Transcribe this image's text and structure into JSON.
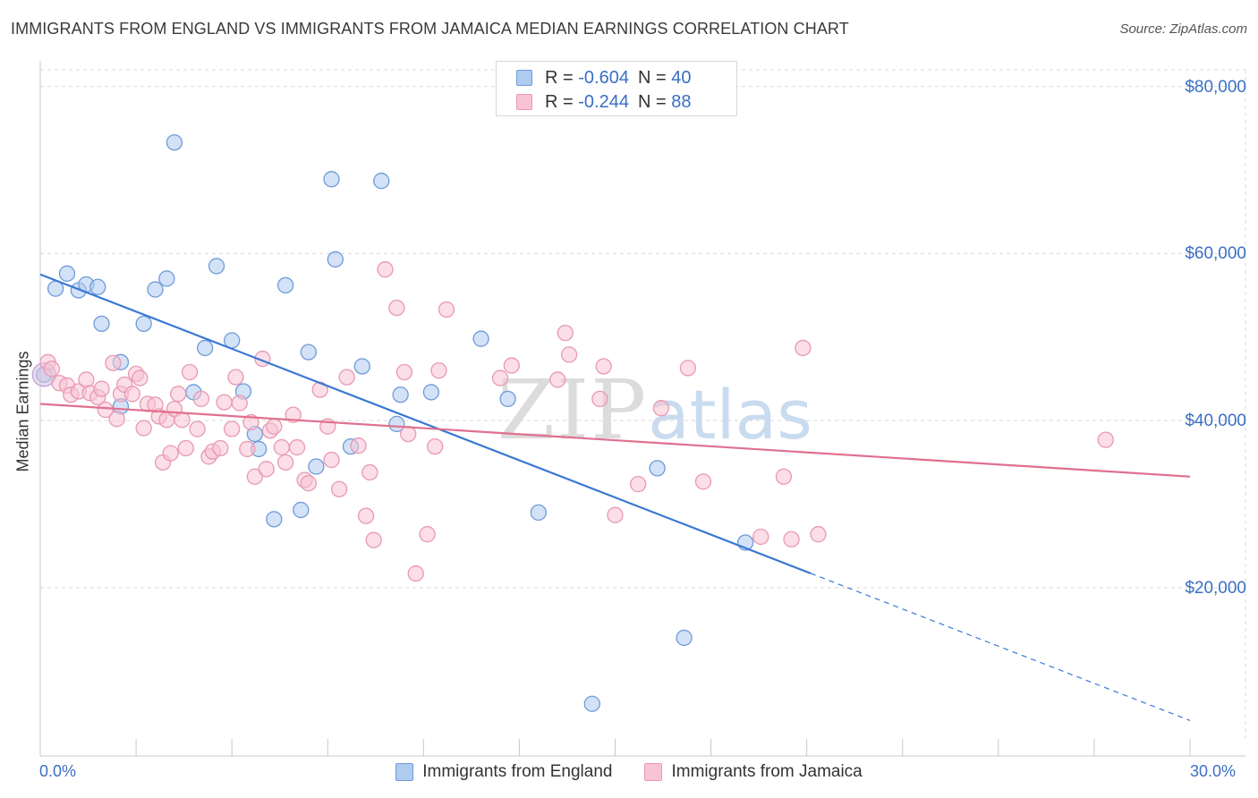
{
  "title": "IMMIGRANTS FROM ENGLAND VS IMMIGRANTS FROM JAMAICA MEDIAN EARNINGS CORRELATION CHART",
  "source": "Source: ZipAtlas.com",
  "watermark": {
    "zip": "ZIP",
    "atlas": "atlas"
  },
  "legend_top": [
    {
      "r_label": "R = ",
      "r_value": "-0.604",
      "n_label": "N = ",
      "n_value": "40"
    },
    {
      "r_label": "R = ",
      "r_value": "-0.244",
      "n_label": "N = ",
      "n_value": "88"
    }
  ],
  "colors": {
    "england_fill": "#aecbf0",
    "england_stroke": "#6f9bd8",
    "england_line": "#3a78d4",
    "jamaica_fill": "#f8c3d3",
    "jamaica_stroke": "#e899b3",
    "jamaica_line": "#e0708f",
    "axis_text": "#3a6fc4",
    "grid": "#d9d9d9"
  },
  "chart_data": {
    "type": "scatter",
    "title": "IMMIGRANTS FROM ENGLAND VS IMMIGRANTS FROM JAMAICA MEDIAN EARNINGS CORRELATION CHART",
    "xlabel": "",
    "ylabel": "Median Earnings",
    "xlim": [
      0,
      30
    ],
    "ylim": [
      2000,
      82000
    ],
    "x_tick_labels": [
      "0.0%",
      "30.0%"
    ],
    "y_ticks": [
      {
        "value": 20000,
        "label": "$20,000"
      },
      {
        "value": 40000,
        "label": "$40,000"
      },
      {
        "value": 60000,
        "label": "$60,000"
      },
      {
        "value": 80000,
        "label": "$80,000"
      }
    ],
    "grid": true,
    "legend_position": "bottom",
    "series": [
      {
        "name": "Immigrants from England",
        "r": -0.604,
        "n": 40,
        "trend": {
          "x0": 0,
          "y0": 57500,
          "x1": 30,
          "y1": 4100,
          "solid_until_x": 20.1
        },
        "points": [
          [
            0.1,
            45500
          ],
          [
            0.4,
            55800
          ],
          [
            0.7,
            57600
          ],
          [
            1.0,
            55600
          ],
          [
            1.2,
            56300
          ],
          [
            1.5,
            56000
          ],
          [
            1.6,
            51600
          ],
          [
            2.1,
            47000
          ],
          [
            2.1,
            41700
          ],
          [
            2.7,
            51600
          ],
          [
            3.0,
            55700
          ],
          [
            3.3,
            57000
          ],
          [
            3.5,
            73300
          ],
          [
            4.0,
            43400
          ],
          [
            4.3,
            48700
          ],
          [
            4.6,
            58500
          ],
          [
            5.0,
            49600
          ],
          [
            5.3,
            43500
          ],
          [
            5.6,
            38400
          ],
          [
            5.7,
            36600
          ],
          [
            6.1,
            28200
          ],
          [
            6.4,
            56200
          ],
          [
            6.8,
            29300
          ],
          [
            7.0,
            48200
          ],
          [
            7.2,
            34500
          ],
          [
            7.6,
            68900
          ],
          [
            7.7,
            59300
          ],
          [
            8.1,
            36900
          ],
          [
            8.4,
            46500
          ],
          [
            8.9,
            68700
          ],
          [
            9.3,
            39600
          ],
          [
            9.4,
            43100
          ],
          [
            10.2,
            43400
          ],
          [
            11.5,
            49800
          ],
          [
            12.2,
            42600
          ],
          [
            13.0,
            29000
          ],
          [
            16.1,
            34300
          ],
          [
            16.8,
            14000
          ],
          [
            18.4,
            25400
          ],
          [
            14.4,
            6100
          ]
        ]
      },
      {
        "name": "Immigrants from Jamaica",
        "r": -0.244,
        "n": 88,
        "trend": {
          "x0": 0,
          "y0": 42000,
          "x1": 30,
          "y1": 33300
        },
        "points": [
          [
            0.2,
            47000
          ],
          [
            0.3,
            46200
          ],
          [
            0.5,
            44500
          ],
          [
            0.7,
            44200
          ],
          [
            0.8,
            43100
          ],
          [
            1.0,
            43500
          ],
          [
            1.2,
            44900
          ],
          [
            1.3,
            43300
          ],
          [
            1.5,
            42800
          ],
          [
            1.6,
            43800
          ],
          [
            1.7,
            41300
          ],
          [
            1.9,
            46900
          ],
          [
            2.0,
            40200
          ],
          [
            2.1,
            43200
          ],
          [
            2.2,
            44300
          ],
          [
            2.4,
            43200
          ],
          [
            2.5,
            45600
          ],
          [
            2.6,
            45100
          ],
          [
            2.7,
            39100
          ],
          [
            2.8,
            42000
          ],
          [
            3.0,
            41900
          ],
          [
            3.1,
            40500
          ],
          [
            3.2,
            35000
          ],
          [
            3.3,
            40100
          ],
          [
            3.4,
            36100
          ],
          [
            3.5,
            41400
          ],
          [
            3.6,
            43200
          ],
          [
            3.7,
            40100
          ],
          [
            3.8,
            36700
          ],
          [
            3.9,
            45800
          ],
          [
            4.1,
            39000
          ],
          [
            4.2,
            42600
          ],
          [
            4.4,
            35700
          ],
          [
            4.5,
            36300
          ],
          [
            4.7,
            36700
          ],
          [
            4.8,
            42200
          ],
          [
            5.0,
            39000
          ],
          [
            5.1,
            45200
          ],
          [
            5.2,
            42100
          ],
          [
            5.4,
            36600
          ],
          [
            5.5,
            39800
          ],
          [
            5.6,
            33300
          ],
          [
            5.8,
            47400
          ],
          [
            5.9,
            34200
          ],
          [
            6.0,
            38800
          ],
          [
            6.1,
            39300
          ],
          [
            6.3,
            36800
          ],
          [
            6.4,
            35000
          ],
          [
            6.6,
            40700
          ],
          [
            6.7,
            36800
          ],
          [
            6.9,
            32900
          ],
          [
            7.0,
            32500
          ],
          [
            7.3,
            43700
          ],
          [
            7.5,
            39300
          ],
          [
            7.6,
            35300
          ],
          [
            7.8,
            31800
          ],
          [
            8.0,
            45200
          ],
          [
            8.3,
            37000
          ],
          [
            8.5,
            28600
          ],
          [
            8.6,
            33800
          ],
          [
            8.7,
            25700
          ],
          [
            9.0,
            58100
          ],
          [
            9.3,
            53500
          ],
          [
            9.5,
            45800
          ],
          [
            9.6,
            38400
          ],
          [
            9.8,
            21700
          ],
          [
            10.1,
            26400
          ],
          [
            10.3,
            36900
          ],
          [
            10.4,
            46000
          ],
          [
            10.6,
            53300
          ],
          [
            12.0,
            45100
          ],
          [
            12.3,
            46600
          ],
          [
            13.5,
            44900
          ],
          [
            13.7,
            50500
          ],
          [
            13.8,
            47900
          ],
          [
            14.6,
            42600
          ],
          [
            14.7,
            46500
          ],
          [
            15.0,
            28700
          ],
          [
            15.6,
            32400
          ],
          [
            16.2,
            41500
          ],
          [
            16.9,
            46300
          ],
          [
            17.3,
            32700
          ],
          [
            18.8,
            26100
          ],
          [
            19.4,
            33300
          ],
          [
            19.6,
            25800
          ],
          [
            19.9,
            48700
          ],
          [
            20.3,
            26400
          ],
          [
            27.8,
            37700
          ]
        ]
      }
    ]
  }
}
